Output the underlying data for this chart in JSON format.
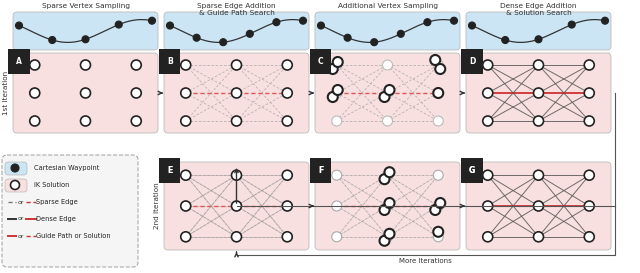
{
  "title_top": [
    "Sparse Vertex Sampling",
    "Sparse Edge Addition\n& Guide Path Search",
    "Additional Vertex Sampling",
    "Dense Edge Addition\n& Solution Search"
  ],
  "bg_blue": "#cce5f5",
  "bg_pink": "#f9e0e0",
  "iter1_label": "1st Iteration",
  "iter2_label": "2nd Iteration",
  "more_iter_label": "More Iterations",
  "sparse_gray": "#999999",
  "sparse_red": "#dd5555",
  "dense_dark": "#555555",
  "guide_red": "#cc2222",
  "node_fill_white": "#ffffff",
  "node_fill_black": "#222222",
  "node_edge": "#222222"
}
